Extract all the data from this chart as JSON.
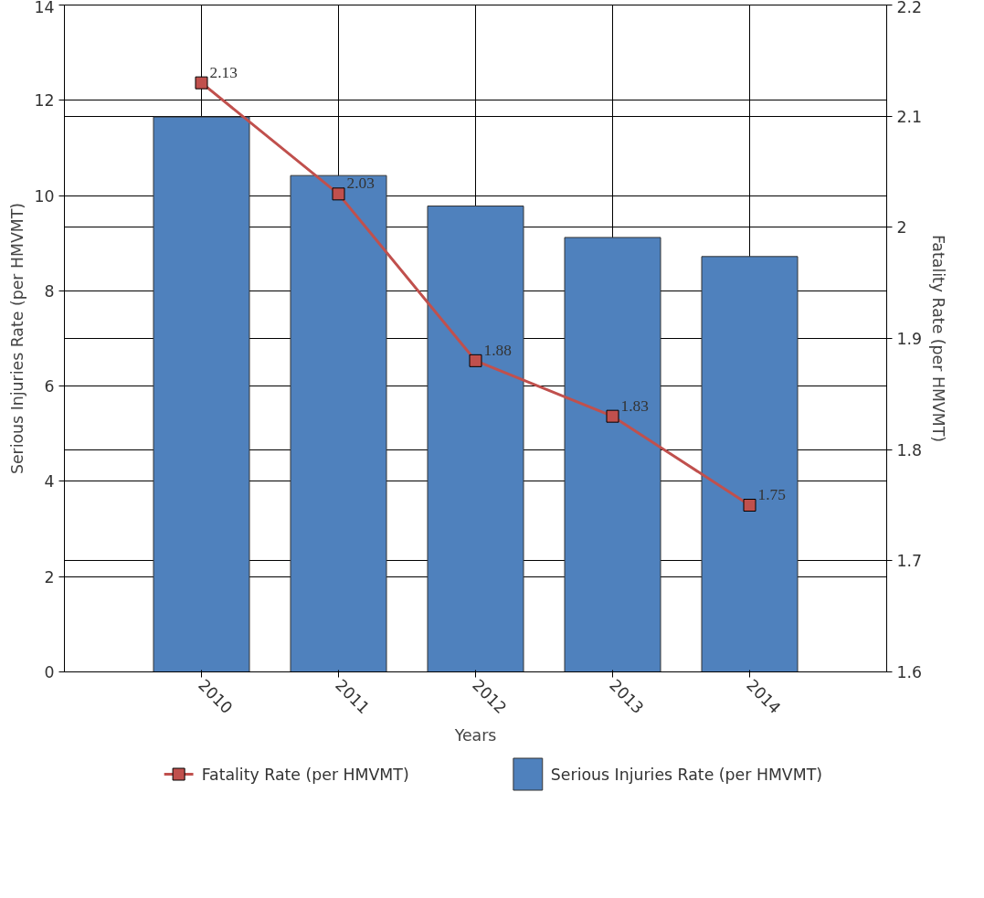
{
  "chart_data": {
    "type": "bar",
    "xlabel": "Years",
    "ylabel": "Serious Injuries Rate (per HMVMT)",
    "y2label": "Fatality Rate (per HMVMT)",
    "categories": [
      "2010",
      "2011",
      "2012",
      "2013",
      "2014"
    ],
    "series": [
      {
        "name": "Fatality Rate (per HMVMT)",
        "type": "line",
        "axis": "y2",
        "color": "#c0504d",
        "marker": "square",
        "values": [
          2.13,
          2.03,
          1.88,
          1.83,
          1.75
        ],
        "value_labels": [
          "2.13",
          "2.03",
          "1.88",
          "1.83",
          "1.75"
        ]
      },
      {
        "name": "Serious Injuries Rate (per HMVMT)",
        "color": "#4f81bd",
        "values": [
          11.65,
          10.42,
          9.78,
          9.12,
          8.72
        ]
      }
    ],
    "ylim": [
      0,
      14
    ],
    "yticks": [
      0,
      2,
      4,
      6,
      8,
      10,
      12,
      14
    ],
    "y2lim": [
      1.6,
      2.2
    ],
    "y2ticks": [
      1.6,
      1.7,
      1.8,
      1.9,
      2,
      2.1,
      2.2
    ],
    "grid": true,
    "legend": "bottom"
  }
}
